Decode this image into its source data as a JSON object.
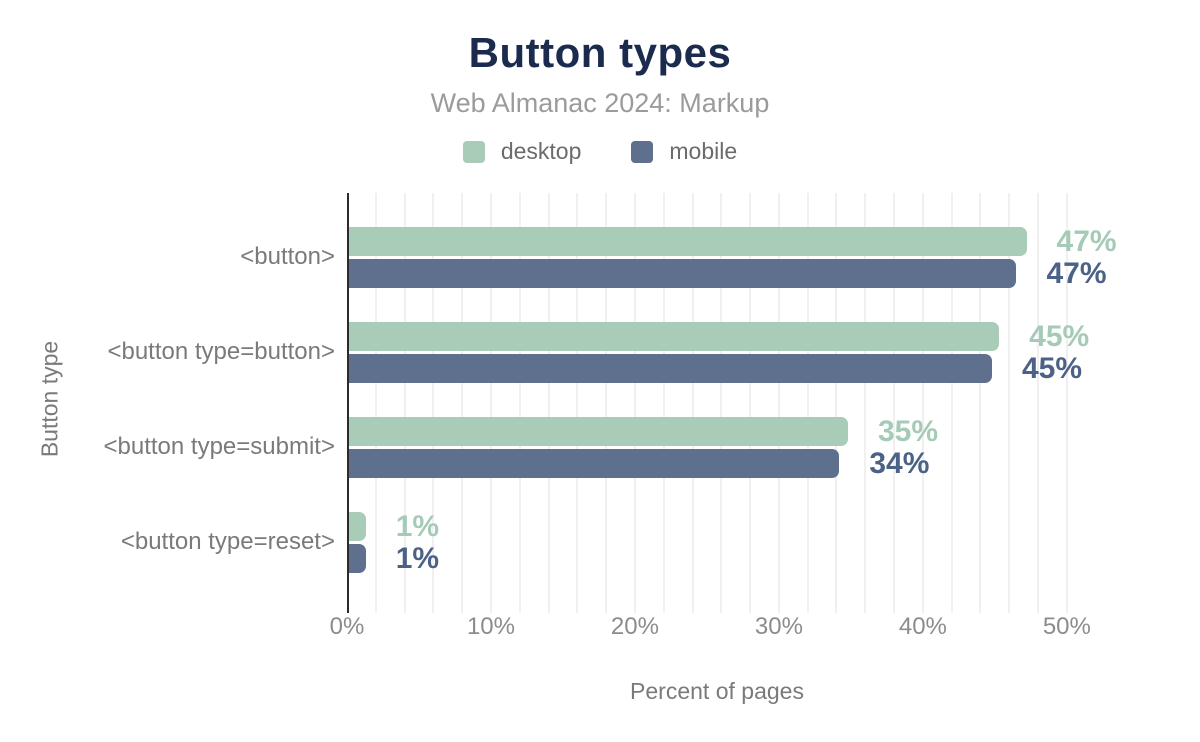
{
  "header": {
    "title": "Button types",
    "subtitle": "Web Almanac 2024: Markup"
  },
  "colors": {
    "desktop": "#a9ccb8",
    "mobile": "#5e708d",
    "desktop_label": "#a5cbb7",
    "mobile_label": "#4c6186",
    "title": "#1b2b4d",
    "axis_line": "#2b2b2b",
    "gridline": "#f0f0f0"
  },
  "chart_data": {
    "type": "bar",
    "orientation": "horizontal",
    "title": "Button types",
    "subtitle": "Web Almanac 2024: Markup",
    "xlabel": "Percent of pages",
    "ylabel": "Button type",
    "categories": [
      "<button>",
      "<button type=button>",
      "<button type=submit>",
      "<button type=reset>"
    ],
    "series": [
      {
        "name": "desktop",
        "color": "#a9ccb8",
        "label_color": "#a5cbb7",
        "values": [
          47,
          45,
          35,
          1
        ],
        "labels": [
          "47%",
          "45%",
          "35%",
          "1%"
        ],
        "values_precise": [
          47.2,
          45.3,
          34.8,
          1.3
        ]
      },
      {
        "name": "mobile",
        "color": "#5e708d",
        "label_color": "#4c6186",
        "values": [
          47,
          45,
          34,
          1
        ],
        "labels": [
          "47%",
          "45%",
          "34%",
          "1%"
        ],
        "values_precise": [
          46.5,
          44.8,
          34.2,
          1.3
        ]
      }
    ],
    "xticks": [
      0,
      10,
      20,
      30,
      40,
      50
    ],
    "xtick_labels": [
      "0%",
      "10%",
      "20%",
      "30%",
      "40%",
      "50%"
    ],
    "xlim": [
      0,
      51.4
    ],
    "grid": true,
    "grid_step": 2,
    "legend_position": "top"
  }
}
